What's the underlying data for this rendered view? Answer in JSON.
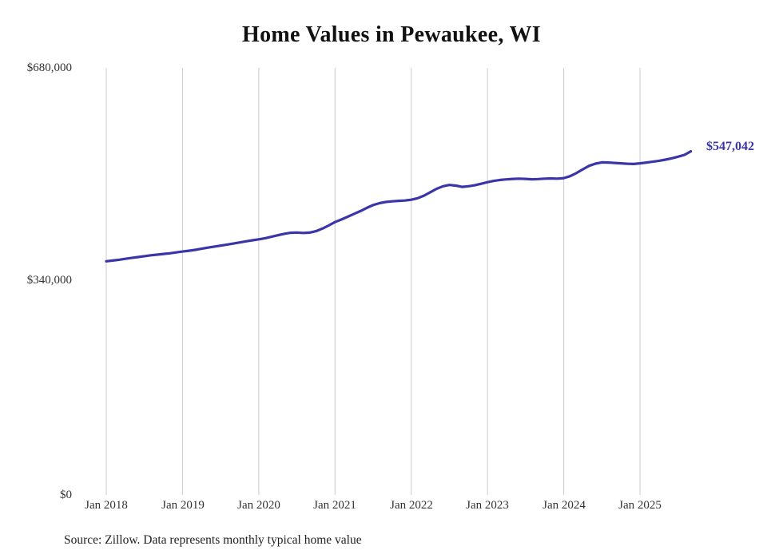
{
  "title": "Home Values in Pewaukee, WI",
  "source_note": "Source: Zillow. Data represents monthly typical home value",
  "chart_data": {
    "type": "line",
    "title": "Home Values in Pewaukee, WI",
    "xlabel": "",
    "ylabel": "",
    "ylim": [
      0,
      680000
    ],
    "grid": "vertical-only",
    "legend": "none",
    "frequency": "monthly",
    "start_month": "Jan 2018",
    "end_month": "Sep 2025",
    "end_label": "$547,042",
    "last_value": 547042,
    "y_ticks": [
      {
        "label": "$680,000",
        "value": 680000
      },
      {
        "label": "$340,000",
        "value": 340000
      },
      {
        "label": "$0",
        "value": 0
      }
    ],
    "x_ticks": [
      "Jan 2018",
      "Jan 2019",
      "Jan 2020",
      "Jan 2021",
      "Jan 2022",
      "Jan 2023",
      "Jan 2024",
      "Jan 2025"
    ],
    "series": [
      {
        "name": "Typical home value",
        "values": [
          372000,
          373200,
          374500,
          376000,
          377400,
          378800,
          380200,
          381500,
          382600,
          383700,
          384800,
          386200,
          387600,
          388800,
          390200,
          392000,
          393800,
          395400,
          397000,
          398600,
          400200,
          402000,
          403800,
          405400,
          407000,
          408800,
          411000,
          413500,
          415800,
          417400,
          417800,
          417200,
          417600,
          420000,
          424000,
          429000,
          434500,
          438500,
          443000,
          447500,
          452000,
          457000,
          461500,
          464500,
          466500,
          467500,
          468200,
          468800,
          470000,
          472500,
          476500,
          482000,
          487500,
          491500,
          493500,
          492500,
          490500,
          491500,
          493000,
          495500,
          498000,
          500000,
          501500,
          502500,
          503200,
          503600,
          503200,
          502600,
          503000,
          503600,
          504000,
          503600,
          504500,
          507500,
          512500,
          518500,
          524000,
          527500,
          529500,
          529200,
          528600,
          528000,
          527400,
          527000,
          528000,
          529200,
          530500,
          532000,
          533800,
          536000,
          538500,
          541500,
          547042
        ]
      }
    ],
    "colors": {
      "line": "#3a35a8",
      "grid": "#cccccc",
      "end_label": "#3a35a8",
      "text": "#333333"
    }
  }
}
